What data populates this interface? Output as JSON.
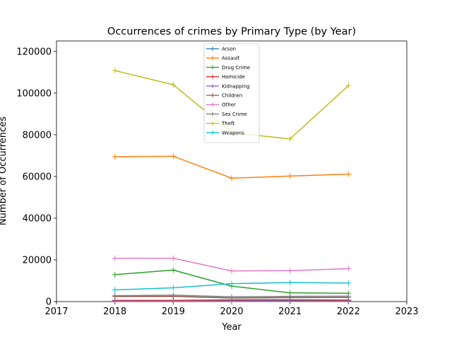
{
  "chart_data": {
    "type": "line",
    "title": "Occurrences of crimes by Primary Type (by Year)",
    "xlabel": "Year",
    "ylabel": "Number of Occurrences",
    "xlim": [
      2017,
      2023
    ],
    "ylim": [
      0,
      125000
    ],
    "xticks": [
      2017,
      2018,
      2019,
      2020,
      2021,
      2022,
      2023
    ],
    "yticks": [
      0,
      20000,
      40000,
      60000,
      80000,
      100000,
      120000
    ],
    "grid": false,
    "legend_position": "top-center",
    "marker": "plus",
    "x": [
      2018,
      2019,
      2020,
      2021,
      2022
    ],
    "series": [
      {
        "name": "Arson",
        "color": "#1f77b4",
        "values": [
          400,
          450,
          550,
          500,
          450
        ]
      },
      {
        "name": "Assault",
        "color": "#ff7f0e",
        "values": [
          69500,
          69700,
          59200,
          60200,
          61100
        ]
      },
      {
        "name": "Drug Crime",
        "color": "#2ca02c",
        "values": [
          12900,
          15100,
          7400,
          4200,
          4000
        ]
      },
      {
        "name": "Homicide",
        "color": "#d62728",
        "values": [
          600,
          550,
          800,
          850,
          700
        ]
      },
      {
        "name": "Kidnapping",
        "color": "#9467bd",
        "values": [
          200,
          180,
          150,
          160,
          170
        ]
      },
      {
        "name": "Children",
        "color": "#8c564b",
        "values": [
          2400,
          2500,
          1700,
          1900,
          1950
        ]
      },
      {
        "name": "Other",
        "color": "#e377c2",
        "values": [
          20800,
          20800,
          14700,
          14800,
          15800
        ]
      },
      {
        "name": "Sex Crime",
        "color": "#7f7f7f",
        "values": [
          2800,
          3100,
          2300,
          2500,
          2600
        ]
      },
      {
        "name": "Theft",
        "color": "#bcbd22",
        "values": [
          110800,
          104000,
          81000,
          78000,
          103600
        ]
      },
      {
        "name": "Weapons",
        "color": "#17becf",
        "values": [
          5600,
          6600,
          8600,
          9100,
          8900
        ]
      }
    ]
  }
}
